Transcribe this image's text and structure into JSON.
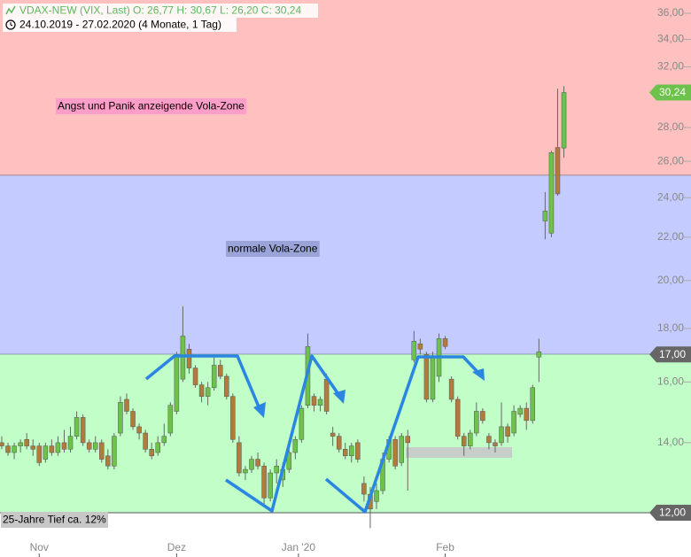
{
  "chart_data": {
    "type": "candlestick",
    "title": "VDAX-NEW (VIX, Last)  O: 26,77  H: 30,67  L: 26,20  C: 30,24",
    "subtitle": "24.10.2019 - 27.02.2020   (4 Monate, 1 Tag)",
    "log_scale": true,
    "up_color": "#6cc24a",
    "down_color": "#b07c3c",
    "ylim": [
      11.52,
      37.07
    ],
    "xlim": [
      -0.28,
      110.35
    ],
    "yticks": [
      {
        "value": 14,
        "label": "14,00"
      },
      {
        "value": 16,
        "label": "16,00"
      },
      {
        "value": 18,
        "label": "18,00"
      },
      {
        "value": 20,
        "label": "20,00"
      },
      {
        "value": 22,
        "label": "22,00"
      },
      {
        "value": 24,
        "label": "24,00"
      },
      {
        "value": 26,
        "label": "26,00"
      },
      {
        "value": 28,
        "label": "28,00"
      },
      {
        "value": 32,
        "label": "32,00"
      },
      {
        "value": 34,
        "label": "34,00"
      },
      {
        "value": 36,
        "label": "36,00"
      }
    ],
    "xticks": [
      {
        "value": 6,
        "label": "Nov"
      },
      {
        "value": 28,
        "label": "Dez"
      },
      {
        "value": 47.5,
        "label": "Jan '20"
      },
      {
        "value": 71,
        "label": "Feb"
      }
    ],
    "zones": [
      {
        "from": 25.2,
        "to": 37.07,
        "color": "#ffc0c0",
        "label": "Angst und Panik anzeigende Vola-Zone",
        "label_color": "#ff9ec8"
      },
      {
        "from": 17,
        "to": 25.2,
        "color": "#c4ccff",
        "label": "normale Vola-Zone",
        "label_color": "#9aa4d8"
      },
      {
        "from": 12,
        "to": 17,
        "color": "#c2ffc8",
        "label": "25-Jahre Tief ca. 12%",
        "label_color": "#c8c8c8"
      }
    ],
    "levels": [
      {
        "value": 30.24,
        "label": "30,24",
        "color": "#6cc24a"
      },
      {
        "value": 17,
        "label": "17,00",
        "color": "#666666"
      },
      {
        "value": 12,
        "label": "12,00",
        "color": "#666666"
      }
    ],
    "candles": [
      [
        14.0,
        14.2,
        13.8,
        13.9
      ],
      [
        13.9,
        14.0,
        13.6,
        13.7
      ],
      [
        13.7,
        14.0,
        13.5,
        13.9
      ],
      [
        13.9,
        14.1,
        13.7,
        14.0
      ],
      [
        14.1,
        14.3,
        13.8,
        13.9
      ],
      [
        13.9,
        14.1,
        13.6,
        13.8
      ],
      [
        13.9,
        14.0,
        13.3,
        13.4
      ],
      [
        13.5,
        14.0,
        13.4,
        13.9
      ],
      [
        13.9,
        14.1,
        13.6,
        13.7
      ],
      [
        13.7,
        14.2,
        13.6,
        14.0
      ],
      [
        14.0,
        14.4,
        13.7,
        13.8
      ],
      [
        13.8,
        14.5,
        13.7,
        14.2
      ],
      [
        14.2,
        15.0,
        14.1,
        14.8
      ],
      [
        14.8,
        14.9,
        13.9,
        14.0
      ],
      [
        14.0,
        14.1,
        13.7,
        13.8
      ],
      [
        13.8,
        14.2,
        13.7,
        14.0
      ],
      [
        14.0,
        14.1,
        13.4,
        13.5
      ],
      [
        13.6,
        13.8,
        13.2,
        13.3
      ],
      [
        13.3,
        14.3,
        13.2,
        14.2
      ],
      [
        14.3,
        15.5,
        14.2,
        15.3
      ],
      [
        15.4,
        15.6,
        14.9,
        15.0
      ],
      [
        15.0,
        15.1,
        14.4,
        14.5
      ],
      [
        14.5,
        14.6,
        14.1,
        14.3
      ],
      [
        14.3,
        14.4,
        13.7,
        13.8
      ],
      [
        13.8,
        14.0,
        13.5,
        13.6
      ],
      [
        13.7,
        14.2,
        13.6,
        14.0
      ],
      [
        14.0,
        14.6,
        13.9,
        14.2
      ],
      [
        14.3,
        15.3,
        14.2,
        15.2
      ],
      [
        15.0,
        17.1,
        14.9,
        17.0
      ],
      [
        16.1,
        18.9,
        16.0,
        17.7
      ],
      [
        17.2,
        17.4,
        16.3,
        16.5
      ],
      [
        16.5,
        16.6,
        15.8,
        15.9
      ],
      [
        15.9,
        16.0,
        15.3,
        15.5
      ],
      [
        15.5,
        16.0,
        15.2,
        15.8
      ],
      [
        15.8,
        17.0,
        15.7,
        16.6
      ],
      [
        16.6,
        16.8,
        16.1,
        16.2
      ],
      [
        16.2,
        16.3,
        15.4,
        15.5
      ],
      [
        15.5,
        15.6,
        14.0,
        14.1
      ],
      [
        14.0,
        14.2,
        13.0,
        13.1
      ],
      [
        13.1,
        13.3,
        12.9,
        13.2
      ],
      [
        13.2,
        13.6,
        13.1,
        13.5
      ],
      [
        13.5,
        13.7,
        13.2,
        13.3
      ],
      [
        13.3,
        13.4,
        12.2,
        12.4
      ],
      [
        12.4,
        13.2,
        12.3,
        13.1
      ],
      [
        13.1,
        13.5,
        12.8,
        13.3
      ],
      [
        12.9,
        13.4,
        12.7,
        13.2
      ],
      [
        13.2,
        13.8,
        13.1,
        13.7
      ],
      [
        13.7,
        14.2,
        13.5,
        14.1
      ],
      [
        14.1,
        15.2,
        14.0,
        15.1
      ],
      [
        15.2,
        17.8,
        15.1,
        17.3
      ],
      [
        15.5,
        15.6,
        15.0,
        15.2
      ],
      [
        15.2,
        15.5,
        15.0,
        15.4
      ],
      [
        16.1,
        16.3,
        14.9,
        15.0
      ],
      [
        14.3,
        14.5,
        13.9,
        14.2
      ],
      [
        14.2,
        14.3,
        13.7,
        13.8
      ],
      [
        13.8,
        14.0,
        13.5,
        13.6
      ],
      [
        13.6,
        14.0,
        13.4,
        13.9
      ],
      [
        14.0,
        14.1,
        13.4,
        13.5
      ],
      [
        12.8,
        13.0,
        12.3,
        12.5
      ],
      [
        12.5,
        12.7,
        11.6,
        12.1
      ],
      [
        12.3,
        12.8,
        12.1,
        12.6
      ],
      [
        12.6,
        13.7,
        12.5,
        13.5
      ],
      [
        13.5,
        14.2,
        13.4,
        14.1
      ],
      [
        14.1,
        14.2,
        13.2,
        13.3
      ],
      [
        13.4,
        14.3,
        13.3,
        14.2
      ],
      [
        14.2,
        14.4,
        12.6,
        14.0
      ],
      [
        16.8,
        17.9,
        16.7,
        17.5
      ],
      [
        17.4,
        17.6,
        17.0,
        17.2
      ],
      [
        17.0,
        17.1,
        15.3,
        15.4
      ],
      [
        15.4,
        17.1,
        15.3,
        16.9
      ],
      [
        16.2,
        17.8,
        16.0,
        17.6
      ],
      [
        17.6,
        17.7,
        17.2,
        17.3
      ],
      [
        16.1,
        16.2,
        15.3,
        15.4
      ],
      [
        15.4,
        15.5,
        14.1,
        14.2
      ],
      [
        14.2,
        14.3,
        13.6,
        13.9
      ],
      [
        13.9,
        14.4,
        13.8,
        14.3
      ],
      [
        14.3,
        15.3,
        14.2,
        15.0
      ],
      [
        15.0,
        15.1,
        14.6,
        14.7
      ],
      [
        14.2,
        14.3,
        13.8,
        14.0
      ],
      [
        14.0,
        14.1,
        13.7,
        13.9
      ],
      [
        14.0,
        15.3,
        13.9,
        14.5
      ],
      [
        14.5,
        14.6,
        14.0,
        14.2
      ],
      [
        14.3,
        15.2,
        14.2,
        15.0
      ],
      [
        14.9,
        15.2,
        14.8,
        15.1
      ],
      [
        15.1,
        15.3,
        14.4,
        14.7
      ],
      [
        14.7,
        15.9,
        14.6,
        15.8
      ],
      [
        16.9,
        17.6,
        16.0,
        17.1
      ],
      [
        22.8,
        24.3,
        21.9,
        23.3
      ],
      [
        22.2,
        26.6,
        22.0,
        26.5
      ],
      [
        26.8,
        30.5,
        24.1,
        24.2
      ],
      [
        26.77,
        30.67,
        26.2,
        30.24
      ]
    ]
  }
}
